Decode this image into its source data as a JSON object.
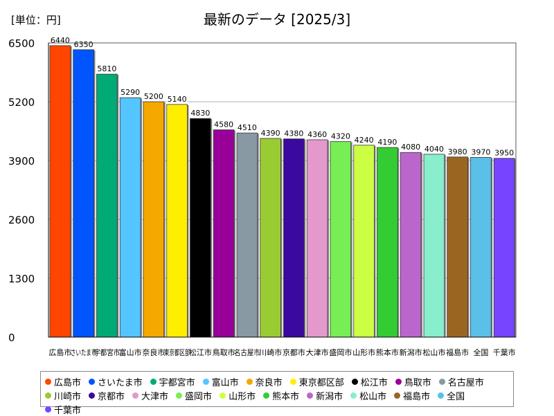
{
  "header": {
    "unit_label": "[単位：円]",
    "title": "最新のデータ [2025/3]"
  },
  "chart_data": {
    "type": "bar",
    "title": "最新のデータ [2025/3]",
    "ylabel": "単位：円",
    "xlabel": "",
    "ylim": [
      0,
      6500
    ],
    "yticks": [
      0,
      1300,
      2600,
      3900,
      5200,
      6500
    ],
    "grid": true,
    "legend": "bottom",
    "categories": [
      "広島市",
      "さいたま市",
      "宇都宮市",
      "富山市",
      "奈良市",
      "東京都区部",
      "松江市",
      "鳥取市",
      "名古屋市",
      "川崎市",
      "京都市",
      "大津市",
      "盛岡市",
      "山形市",
      "熊本市",
      "新潟市",
      "松山市",
      "福島市",
      "全国",
      "千葉市"
    ],
    "values": [
      6440,
      6350,
      5810,
      5290,
      5200,
      5140,
      4830,
      4580,
      4510,
      4390,
      4380,
      4360,
      4320,
      4240,
      4190,
      4080,
      4040,
      3980,
      3970,
      3950
    ],
    "colors": [
      "#ff4500",
      "#0055ff",
      "#00aa77",
      "#55c5ff",
      "#f5a800",
      "#ffee00",
      "#000000",
      "#990099",
      "#8899a4",
      "#99cc33",
      "#3a0aa0",
      "#e499cc",
      "#77ee55",
      "#ccff44",
      "#33cc33",
      "#bb66cc",
      "#88eecc",
      "#996622",
      "#5bc0e8",
      "#7744ff"
    ]
  }
}
